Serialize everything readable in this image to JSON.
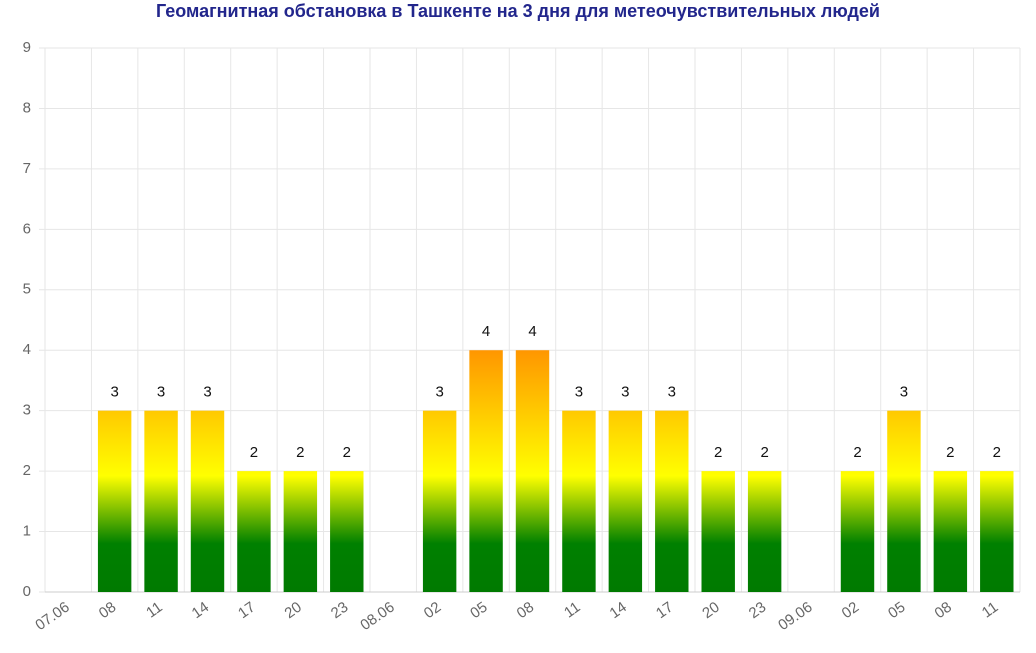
{
  "chart_data": {
    "type": "bar",
    "title": "Геомагнитная обстановка в Ташкенте на 3 дня для метеочувствительных людей",
    "categories": [
      "07.06",
      "08",
      "11",
      "14",
      "17",
      "20",
      "23",
      "08.06",
      "02",
      "05",
      "08",
      "11",
      "14",
      "17",
      "20",
      "23",
      "09.06",
      "02",
      "05",
      "08",
      "11"
    ],
    "values": [
      null,
      3,
      3,
      3,
      2,
      2,
      2,
      null,
      3,
      4,
      4,
      3,
      3,
      3,
      2,
      2,
      null,
      2,
      3,
      2,
      2
    ],
    "ylim": [
      0,
      9
    ],
    "yticks": [
      0,
      1,
      2,
      3,
      4,
      5,
      6,
      7,
      8,
      9
    ],
    "grid": true
  }
}
